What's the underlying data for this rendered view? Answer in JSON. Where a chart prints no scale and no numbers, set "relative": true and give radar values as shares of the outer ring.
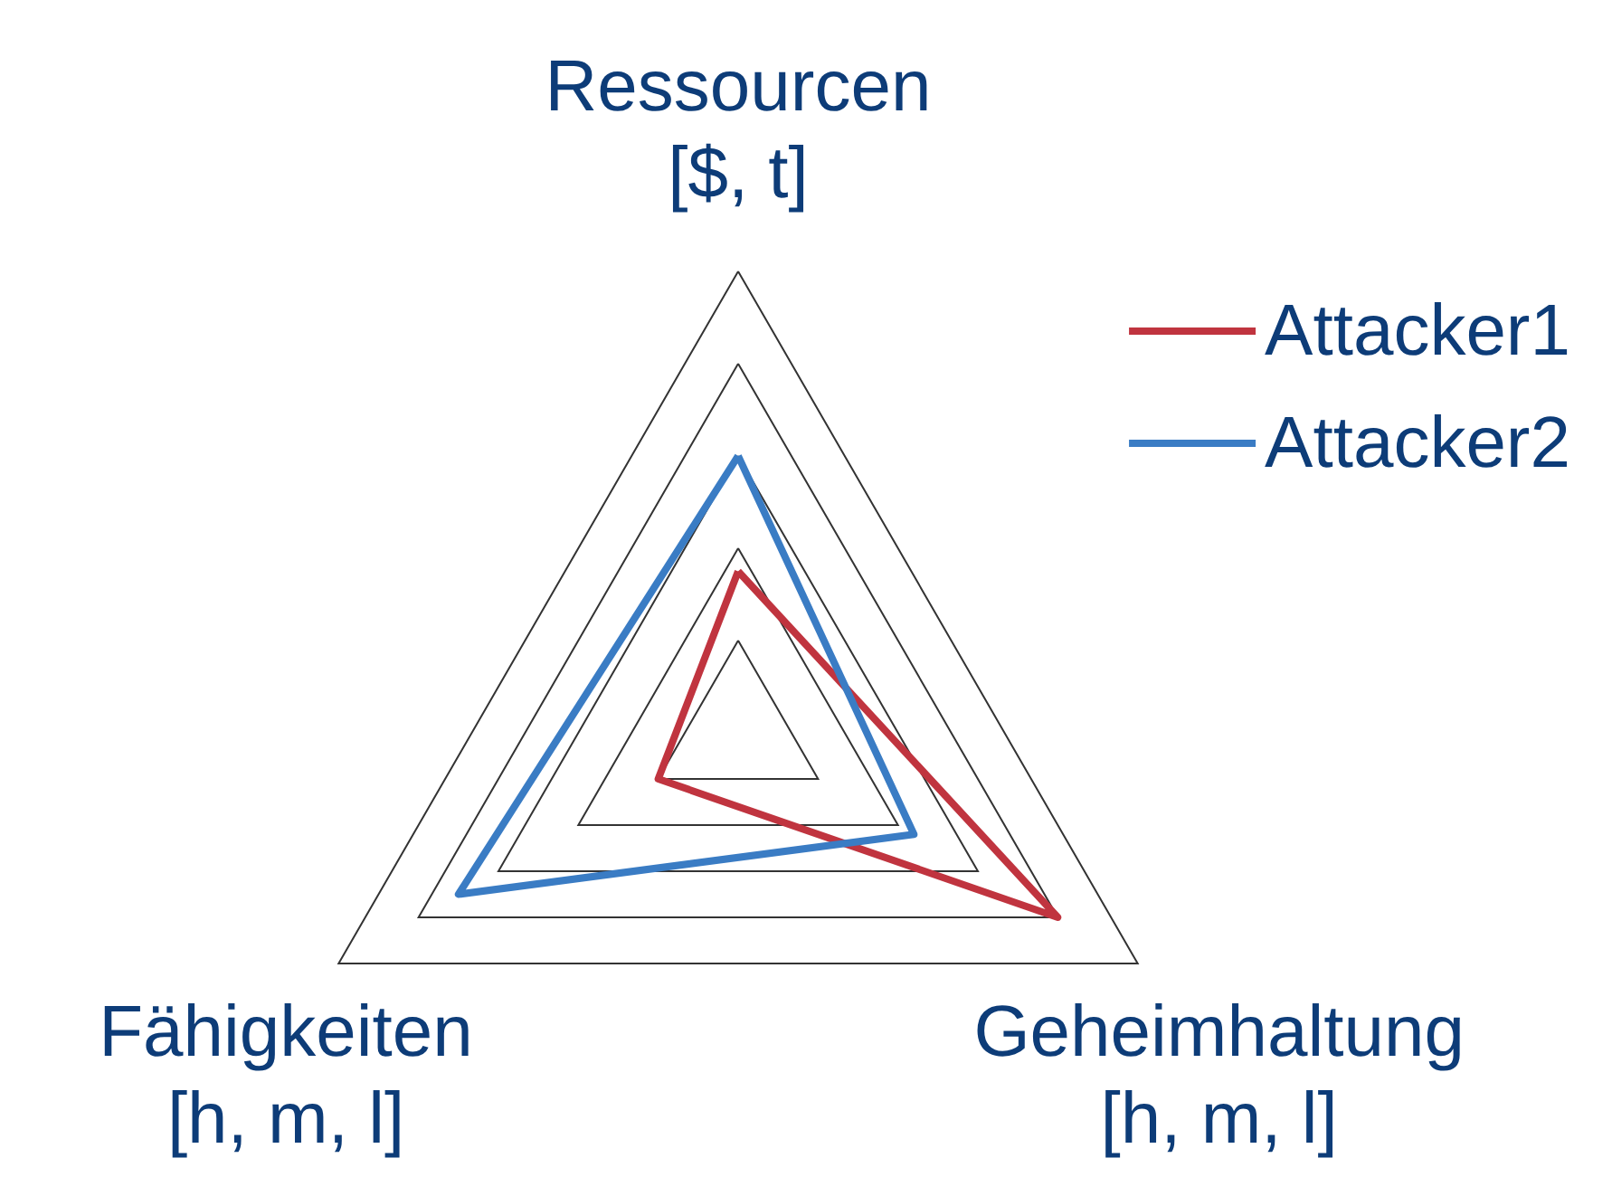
{
  "chart_data": {
    "type": "radar",
    "relative": true,
    "categories": [
      "Ressourcen\n[$, t]",
      "Geheimhaltung\n[h, m, l]",
      "Fähigkeiten\n[h, m, l]"
    ],
    "series": [
      {
        "name": "Attacker1",
        "color": "#c0343f",
        "values": [
          0.35,
          0.8,
          0.2
        ]
      },
      {
        "name": "Attacker2",
        "color": "#3a7cc4",
        "values": [
          0.6,
          0.44,
          0.7
        ]
      }
    ],
    "legend": "top right",
    "marker": "none",
    "line_style": "solid"
  }
}
